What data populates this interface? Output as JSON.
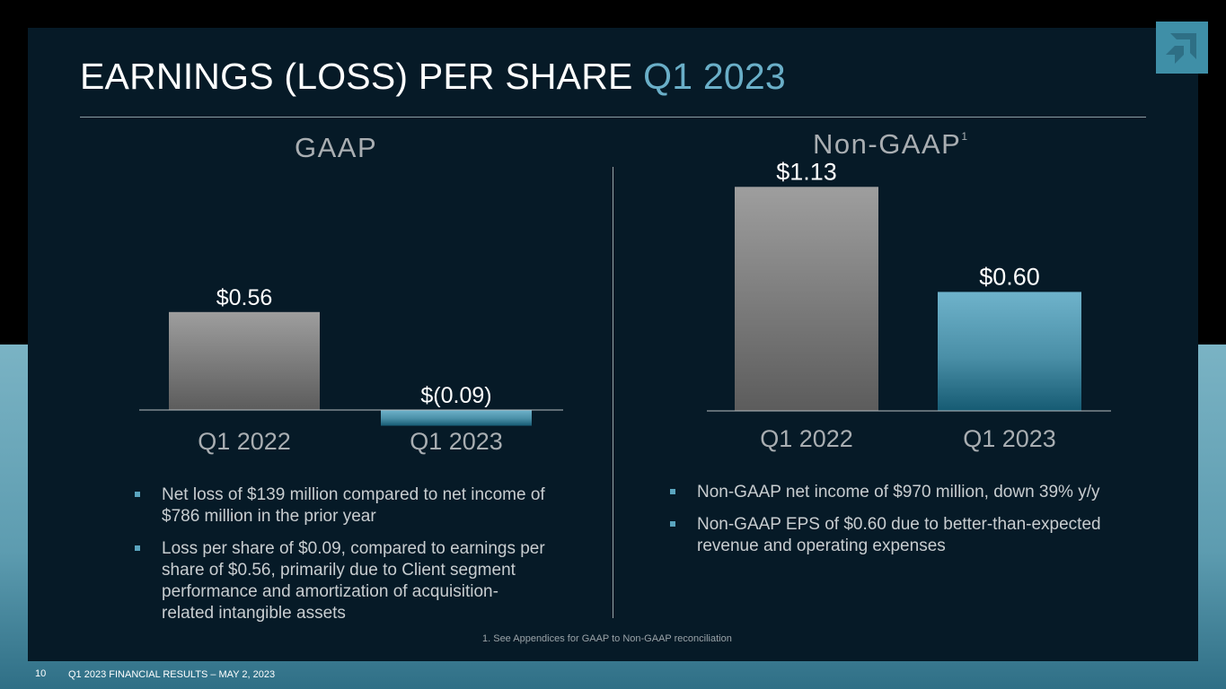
{
  "slide": {
    "title_main": "EARNINGS (LOSS) PER SHARE",
    "title_accent": "Q1 2023",
    "footnote": "1. See Appendices for GAAP to Non-GAAP reconciliation",
    "page_number": "10",
    "footer": "Q1 2023 FINANCIAL RESULTS – MAY 2, 2023",
    "logo": "amd-arrow-logo"
  },
  "gaap": {
    "heading": "GAAP",
    "bullets": [
      "Net loss of $139 million compared to net income of $786 million in the prior year",
      "Loss per share of $0.09, compared to earnings per share of $0.56, primarily due to Client segment performance and amortization of acquisition-related intangible assets"
    ]
  },
  "nongaap": {
    "heading": "Non-GAAP",
    "heading_sup": "1",
    "bullets": [
      "Non-GAAP net income of $970 million, down 39% y/y",
      "Non-GAAP EPS of $0.60 due to better-than-expected revenue and operating expenses"
    ]
  },
  "colors": {
    "q1_2022_bar": "#8f8f8f",
    "q1_2023_bar": "#5fa3bb",
    "title_accent": "#6aafc8",
    "background": "#061a27"
  },
  "chart_data": [
    {
      "type": "bar",
      "categories": [
        "Q1 2022",
        "Q1 2023"
      ],
      "values": [
        0.56,
        -0.09
      ],
      "data_labels": [
        "$0.56",
        "$(0.09)"
      ],
      "title": "GAAP",
      "xlabel": "",
      "ylabel": ""
    },
    {
      "type": "bar",
      "categories": [
        "Q1 2022",
        "Q1 2023"
      ],
      "values": [
        1.13,
        0.6
      ],
      "data_labels": [
        "$1.13",
        "$0.60"
      ],
      "title": "Non-GAAP",
      "xlabel": "",
      "ylabel": ""
    }
  ]
}
